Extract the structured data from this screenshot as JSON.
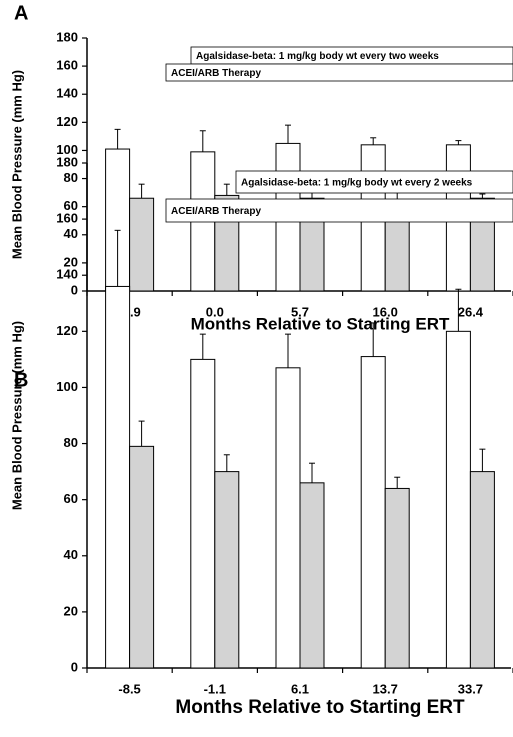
{
  "chart_data": [
    {
      "type": "bar",
      "panel_label": "A",
      "y_label": "Mean Blood Pressure (mm Hg)",
      "x_label": "Months Relative to Starting ERT",
      "annotations": [
        "Agalsidase-beta: 1 mg/kg body wt every two weeks",
        "ACEI/ARB Therapy"
      ],
      "categories": [
        "-4.9",
        "0.0",
        "5.7",
        "16.0",
        "26.4"
      ],
      "series": [
        {
          "color": "#ffffff",
          "values": [
            101,
            99,
            105,
            104,
            104
          ],
          "errors": [
            14,
            15,
            13,
            5,
            3
          ]
        },
        {
          "color": "#d3d3d3",
          "values": [
            66,
            68,
            66,
            65,
            66
          ],
          "errors": [
            10,
            8,
            15,
            5,
            3
          ]
        }
      ],
      "ylim": [
        0,
        180
      ],
      "yticks": [
        0,
        20,
        40,
        60,
        80,
        100,
        120,
        140,
        160,
        180
      ]
    },
    {
      "type": "bar",
      "panel_label": "B",
      "y_label": "Mean Blood Pressure (mm Hg)",
      "x_label": "Months Relative to Starting ERT",
      "annotations": [
        "Agalsidase-beta: 1 mg/kg body wt every 2 weeks",
        "ACEI/ARB Therapy"
      ],
      "categories": [
        "-8.5",
        "-1.1",
        "6.1",
        "13.7",
        "33.7"
      ],
      "series": [
        {
          "color": "#ffffff",
          "values": [
            136,
            110,
            107,
            111,
            120
          ],
          "errors": [
            20,
            9,
            12,
            12,
            15
          ]
        },
        {
          "color": "#d3d3d3",
          "values": [
            79,
            70,
            66,
            64,
            70
          ],
          "errors": [
            9,
            6,
            7,
            4,
            8
          ]
        }
      ],
      "ylim": [
        0,
        180
      ],
      "yticks": [
        0,
        20,
        40,
        60,
        80,
        100,
        120,
        140,
        160,
        180
      ]
    }
  ]
}
